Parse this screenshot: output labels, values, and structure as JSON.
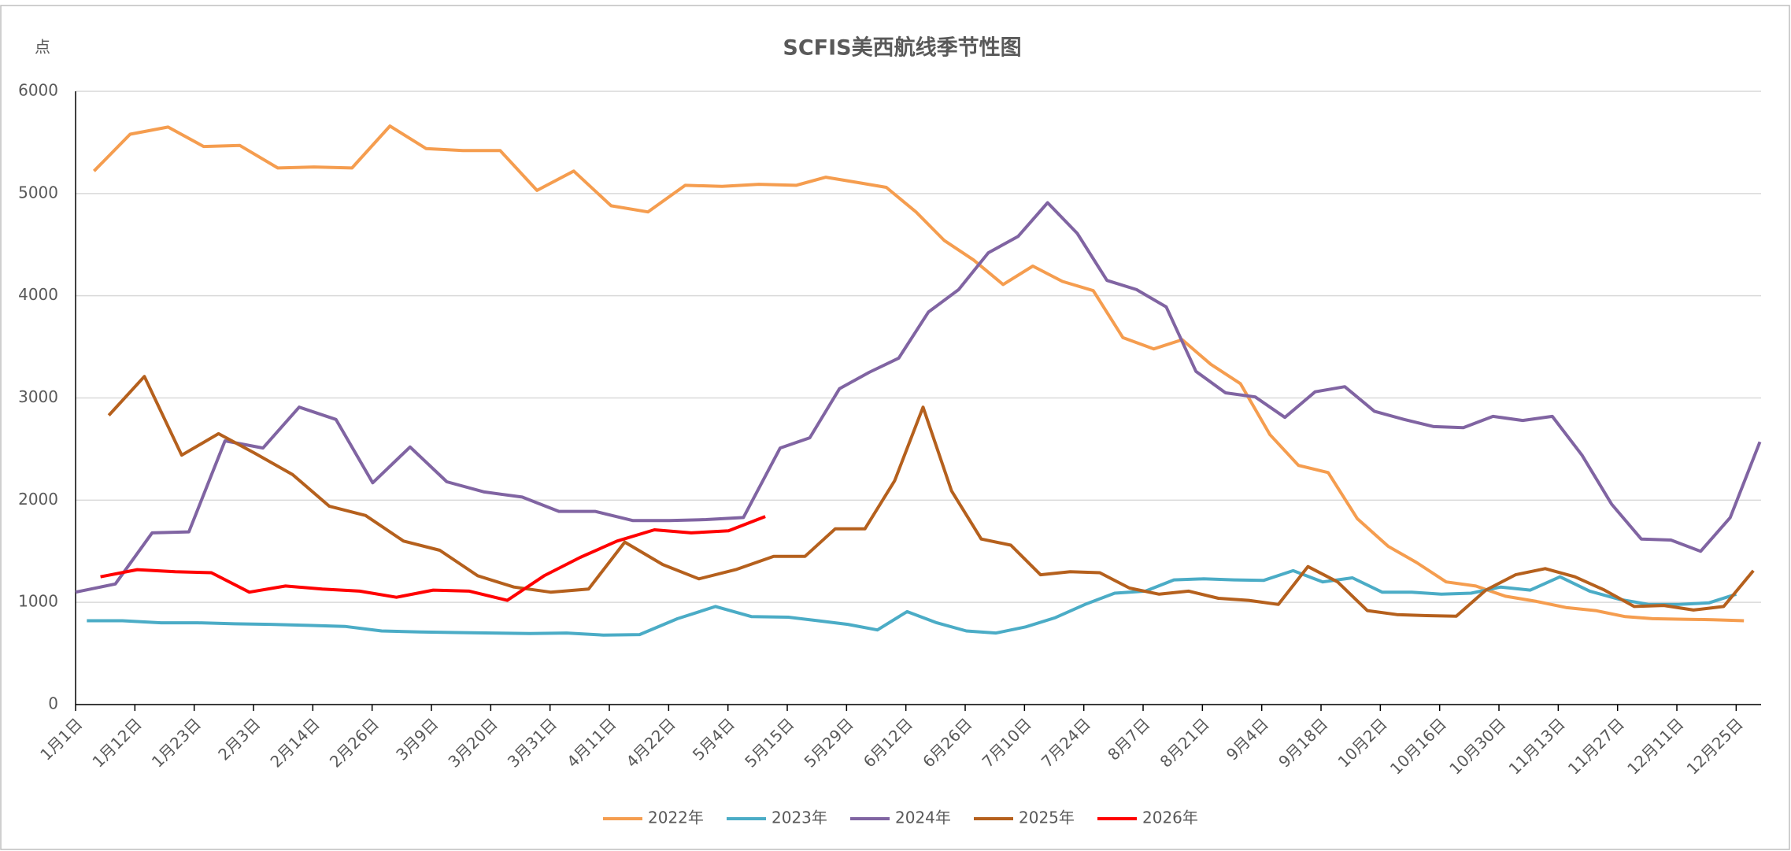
{
  "chart_data": {
    "type": "line",
    "title": "SCFIS美西航线季节性图",
    "y_label": "点",
    "xlim": [
      0,
      28.42
    ],
    "xticks": [
      {
        "value": 0,
        "label": "1月1日"
      },
      {
        "value": 1,
        "label": "1月12日"
      },
      {
        "value": 2,
        "label": "1月23日"
      },
      {
        "value": 3,
        "label": "2月3日"
      },
      {
        "value": 4,
        "label": "2月14日"
      },
      {
        "value": 5,
        "label": "2月26日"
      },
      {
        "value": 6,
        "label": "3月9日"
      },
      {
        "value": 7,
        "label": "3月20日"
      },
      {
        "value": 8,
        "label": "3月31日"
      },
      {
        "value": 9,
        "label": "4月11日"
      },
      {
        "value": 10,
        "label": "4月22日"
      },
      {
        "value": 11,
        "label": "5月4日"
      },
      {
        "value": 12,
        "label": "5月15日"
      },
      {
        "value": 13,
        "label": "5月29日"
      },
      {
        "value": 14,
        "label": "6月12日"
      },
      {
        "value": 15,
        "label": "6月26日"
      },
      {
        "value": 16,
        "label": "7月10日"
      },
      {
        "value": 17,
        "label": "7月24日"
      },
      {
        "value": 18,
        "label": "8月7日"
      },
      {
        "value": 19,
        "label": "8月21日"
      },
      {
        "value": 20,
        "label": "9月4日"
      },
      {
        "value": 21,
        "label": "9月18日"
      },
      {
        "value": 22,
        "label": "10月2日"
      },
      {
        "value": 23,
        "label": "10月16日"
      },
      {
        "value": 24,
        "label": "10月30日"
      },
      {
        "value": 25,
        "label": "11月13日"
      },
      {
        "value": 26,
        "label": "11月27日"
      },
      {
        "value": 27,
        "label": "12月11日"
      },
      {
        "value": 28,
        "label": "12月25日"
      }
    ],
    "ylim": [
      0,
      6000
    ],
    "yticks": [
      0,
      1000,
      2000,
      3000,
      4000,
      5000,
      6000
    ],
    "grid": true,
    "legend": "bottom",
    "series": [
      {
        "name": "2022年",
        "color": "#f59d4f",
        "x": [
          0.31,
          0.92,
          1.56,
          2.16,
          2.77,
          3.41,
          4.02,
          4.66,
          5.3,
          5.91,
          6.53,
          7.16,
          7.78,
          8.4,
          9.03,
          9.65,
          10.28,
          10.9,
          11.52,
          12.15,
          12.65,
          13.17,
          13.67,
          14.17,
          14.65,
          15.14,
          15.64,
          16.14,
          16.64,
          17.16,
          17.66,
          18.18,
          18.66,
          19.14,
          19.64,
          20.14,
          20.62,
          21.12,
          21.61,
          22.13,
          22.61,
          23.11,
          23.61,
          24.11,
          24.63,
          25.13,
          25.63,
          26.13,
          26.59,
          27.11,
          27.61,
          28.13
        ],
        "values": [
          5220,
          5580,
          5650,
          5460,
          5470,
          5250,
          5260,
          5250,
          5660,
          5440,
          5420,
          5420,
          5030,
          5220,
          4880,
          4820,
          5080,
          5070,
          5090,
          5080,
          5160,
          5110,
          5060,
          4820,
          4540,
          4350,
          4110,
          4290,
          4140,
          4050,
          3590,
          3480,
          3570,
          3330,
          3140,
          2640,
          2340,
          2270,
          1820,
          1550,
          1390,
          1200,
          1160,
          1060,
          1010,
          950,
          920,
          860,
          840,
          835,
          830,
          820
        ]
      },
      {
        "name": "2023年",
        "color": "#4bacc6",
        "x": [
          0.19,
          0.79,
          1.44,
          2.06,
          2.68,
          3.29,
          3.93,
          4.54,
          5.16,
          5.8,
          6.41,
          7.03,
          7.66,
          8.28,
          8.9,
          9.51,
          10.15,
          10.79,
          11.4,
          12.02,
          12.52,
          13.02,
          13.52,
          14.02,
          14.52,
          15.02,
          15.52,
          16.02,
          16.52,
          17.02,
          17.52,
          18.04,
          18.52,
          19.02,
          19.53,
          20.03,
          20.53,
          21.03,
          21.53,
          22.03,
          22.53,
          23.03,
          23.53,
          24.03,
          24.53,
          25.03,
          25.53,
          26.03,
          26.53,
          27.03,
          27.54,
          28.0
        ],
        "values": [
          820,
          820,
          800,
          800,
          790,
          785,
          775,
          765,
          720,
          710,
          705,
          700,
          695,
          700,
          680,
          685,
          840,
          960,
          860,
          855,
          820,
          785,
          730,
          910,
          800,
          720,
          700,
          760,
          850,
          980,
          1090,
          1110,
          1220,
          1230,
          1220,
          1215,
          1310,
          1200,
          1240,
          1100,
          1100,
          1080,
          1090,
          1150,
          1120,
          1250,
          1110,
          1030,
          980,
          980,
          995,
          1080
        ]
      },
      {
        "name": "2024年",
        "color": "#8064a2",
        "x": [
          0,
          0.67,
          1.29,
          1.91,
          2.52,
          3.16,
          3.77,
          4.39,
          5.01,
          5.64,
          6.26,
          6.89,
          7.53,
          8.15,
          8.76,
          9.4,
          10.01,
          10.63,
          11.26,
          11.88,
          12.38,
          12.88,
          13.38,
          13.88,
          14.38,
          14.89,
          15.39,
          15.89,
          16.39,
          16.89,
          17.39,
          17.89,
          18.39,
          18.89,
          19.39,
          19.89,
          20.39,
          20.9,
          21.4,
          21.9,
          22.4,
          22.9,
          23.4,
          23.9,
          24.4,
          24.9,
          25.4,
          25.9,
          26.4,
          26.9,
          27.4,
          27.9,
          28.4
        ],
        "values": [
          1100,
          1180,
          1680,
          1690,
          2580,
          2510,
          2910,
          2790,
          2170,
          2520,
          2180,
          2080,
          2030,
          1890,
          1890,
          1800,
          1800,
          1810,
          1830,
          2510,
          2610,
          3090,
          3250,
          3390,
          3840,
          4060,
          4420,
          4580,
          4910,
          4610,
          4150,
          4060,
          3890,
          3260,
          3050,
          3010,
          2810,
          3060,
          3110,
          2870,
          2790,
          2720,
          2710,
          2820,
          2780,
          2820,
          2440,
          1960,
          1620,
          1610,
          1500,
          1830,
          2570
        ]
      },
      {
        "name": "2025年",
        "color": "#b5601d",
        "x": [
          0.56,
          1.16,
          1.79,
          2.41,
          3.02,
          3.66,
          4.28,
          4.89,
          5.53,
          6.14,
          6.78,
          7.39,
          8.01,
          8.65,
          9.26,
          9.9,
          10.51,
          11.13,
          11.77,
          12.3,
          12.81,
          13.31,
          13.81,
          14.29,
          14.77,
          15.27,
          15.77,
          16.27,
          16.77,
          17.27,
          17.77,
          18.27,
          18.77,
          19.27,
          19.78,
          20.28,
          20.78,
          21.28,
          21.78,
          22.28,
          22.78,
          23.28,
          23.78,
          24.28,
          24.78,
          25.28,
          25.78,
          26.28,
          26.78,
          27.28,
          27.79,
          28.29
        ],
        "values": [
          2830,
          3210,
          2440,
          2650,
          2460,
          2250,
          1940,
          1850,
          1600,
          1510,
          1260,
          1150,
          1100,
          1130,
          1590,
          1370,
          1230,
          1320,
          1450,
          1450,
          1720,
          1720,
          2190,
          2910,
          2090,
          1620,
          1560,
          1270,
          1300,
          1290,
          1140,
          1080,
          1110,
          1040,
          1020,
          980,
          1350,
          1200,
          920,
          880,
          870,
          865,
          1120,
          1270,
          1330,
          1250,
          1120,
          960,
          970,
          925,
          960,
          1310
        ]
      },
      {
        "name": "2026年",
        "color": "#ff0000",
        "x": [
          0.42,
          1.04,
          1.68,
          2.29,
          2.93,
          3.54,
          4.16,
          4.79,
          5.41,
          6.03,
          6.64,
          7.28,
          7.9,
          8.51,
          9.13,
          9.76,
          10.38,
          11.01,
          11.63
        ],
        "values": [
          1250,
          1320,
          1300,
          1290,
          1100,
          1160,
          1130,
          1110,
          1050,
          1120,
          1110,
          1020,
          1260,
          1440,
          1600,
          1710,
          1680,
          1700,
          1840
        ]
      }
    ]
  }
}
